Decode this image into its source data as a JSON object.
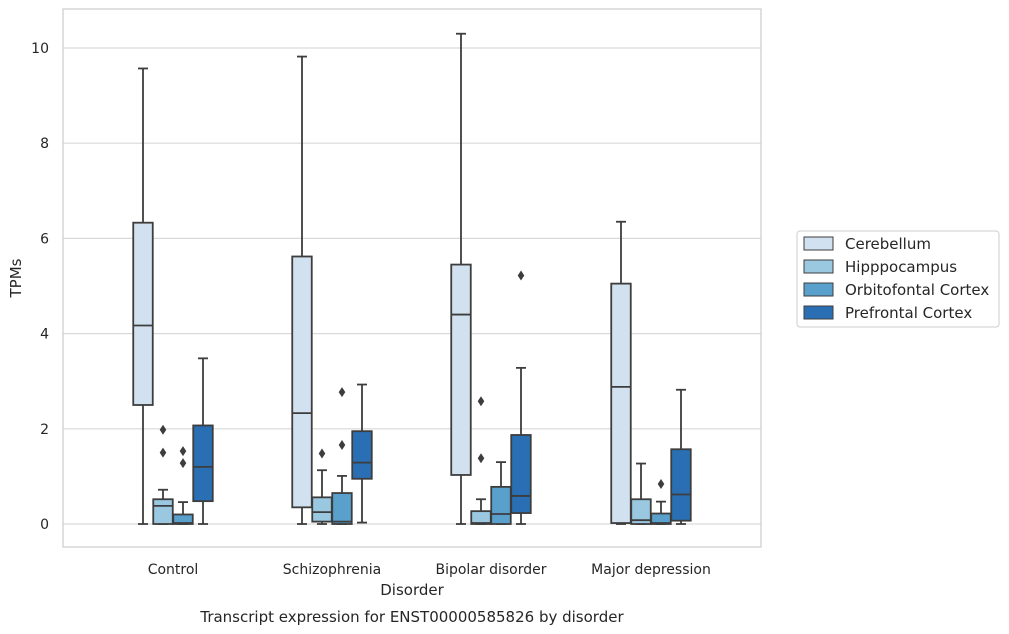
{
  "chart_data": {
    "type": "box",
    "title": "Transcript expression for ENST00000585826 by disorder",
    "xlabel": "Disorder",
    "ylabel": "TPMs",
    "ylim": [
      -0.5,
      10.8
    ],
    "yticks": [
      0,
      2,
      4,
      6,
      8,
      10
    ],
    "grid": true,
    "legend_position": "right",
    "categories": [
      "Control",
      "Schizophrenia",
      "Bipolar disorder",
      "Major depression"
    ],
    "series": [
      {
        "name": "Cerebellum",
        "color": "#d2e1f0",
        "boxes": [
          {
            "whisker_low": 0,
            "q1": 2.5,
            "median": 4.17,
            "q3": 6.33,
            "whisker_high": 9.57,
            "outliers": []
          },
          {
            "whisker_low": 0,
            "q1": 0.35,
            "median": 2.33,
            "q3": 5.62,
            "whisker_high": 9.82,
            "outliers": []
          },
          {
            "whisker_low": 0,
            "q1": 1.03,
            "median": 4.4,
            "q3": 5.45,
            "whisker_high": 10.3,
            "outliers": []
          },
          {
            "whisker_low": 0,
            "q1": 0.02,
            "median": 2.88,
            "q3": 5.05,
            "whisker_high": 6.35,
            "outliers": []
          }
        ]
      },
      {
        "name": "Hipppocampus",
        "color": "#9ac8e0",
        "boxes": [
          {
            "whisker_low": 0,
            "q1": 0,
            "median": 0.38,
            "q3": 0.52,
            "whisker_high": 0.72,
            "outliers": [
              1.5,
              1.98
            ]
          },
          {
            "whisker_low": 0,
            "q1": 0.05,
            "median": 0.25,
            "q3": 0.56,
            "whisker_high": 1.13,
            "outliers": [
              1.48
            ]
          },
          {
            "whisker_low": 0,
            "q1": 0,
            "median": 0.02,
            "q3": 0.27,
            "whisker_high": 0.52,
            "outliers": [
              1.38,
              2.58
            ]
          },
          {
            "whisker_low": 0,
            "q1": 0,
            "median": 0.08,
            "q3": 0.52,
            "whisker_high": 1.27,
            "outliers": []
          }
        ]
      },
      {
        "name": "Orbitofontal Cortex",
        "color": "#5aa0cd",
        "boxes": [
          {
            "whisker_low": 0,
            "q1": 0,
            "median": 0.02,
            "q3": 0.2,
            "whisker_high": 0.46,
            "outliers": [
              1.28,
              1.53
            ]
          },
          {
            "whisker_low": 0,
            "q1": 0,
            "median": 0.05,
            "q3": 0.65,
            "whisker_high": 1.01,
            "outliers": [
              1.66,
              2.77
            ]
          },
          {
            "whisker_low": 0,
            "q1": 0,
            "median": 0.21,
            "q3": 0.78,
            "whisker_high": 1.3,
            "outliers": []
          },
          {
            "whisker_low": 0,
            "q1": 0,
            "median": 0.02,
            "q3": 0.22,
            "whisker_high": 0.47,
            "outliers": [
              0.84
            ]
          }
        ]
      },
      {
        "name": "Prefrontal Cortex",
        "color": "#2a6fb4",
        "boxes": [
          {
            "whisker_low": 0,
            "q1": 0.48,
            "median": 1.2,
            "q3": 2.07,
            "whisker_high": 3.48,
            "outliers": []
          },
          {
            "whisker_low": 0.03,
            "q1": 0.95,
            "median": 1.29,
            "q3": 1.95,
            "whisker_high": 2.93,
            "outliers": []
          },
          {
            "whisker_low": 0,
            "q1": 0.23,
            "median": 0.59,
            "q3": 1.87,
            "whisker_high": 3.28,
            "outliers": [
              5.22
            ]
          },
          {
            "whisker_low": 0,
            "q1": 0.07,
            "median": 0.62,
            "q3": 1.57,
            "whisker_high": 2.82,
            "outliers": []
          }
        ]
      }
    ]
  }
}
